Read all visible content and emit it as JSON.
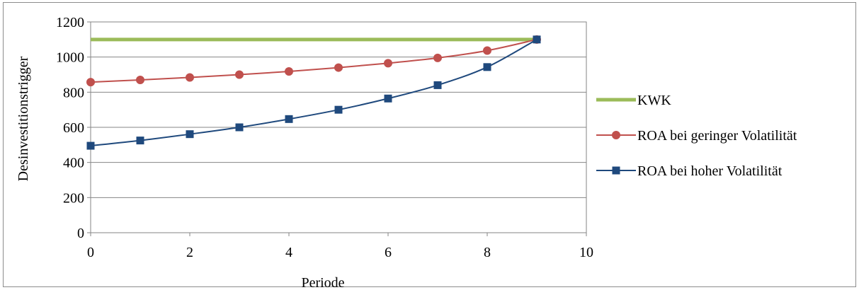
{
  "chart_data": {
    "type": "line",
    "xlabel": "Periode",
    "ylabel": "Desinvestitionstrigger",
    "xlim": [
      0,
      10
    ],
    "ylim": [
      0,
      1200
    ],
    "xticks": [
      0,
      2,
      4,
      6,
      8,
      10
    ],
    "yticks": [
      0,
      200,
      400,
      600,
      800,
      1000,
      1200
    ],
    "grid": "horizontal",
    "legend_position": "right",
    "series": [
      {
        "name": "KWK",
        "color": "#9bbb59",
        "marker": "none",
        "x": [
          0,
          9
        ],
        "y": [
          1100,
          1100
        ]
      },
      {
        "name": "ROA bei geringer Volatilität",
        "color": "#c0504d",
        "marker": "circle",
        "x": [
          0,
          1,
          2,
          3,
          4,
          5,
          6,
          7,
          8,
          9
        ],
        "y": [
          857,
          870,
          884,
          900,
          918,
          940,
          965,
          995,
          1037,
          1100
        ]
      },
      {
        "name": "ROA bei hoher Volatilität",
        "color": "#1f497d",
        "marker": "square",
        "x": [
          0,
          1,
          2,
          3,
          4,
          5,
          6,
          7,
          8,
          9
        ],
        "y": [
          495,
          525,
          561,
          600,
          647,
          700,
          764,
          840,
          943,
          1100
        ]
      }
    ]
  }
}
